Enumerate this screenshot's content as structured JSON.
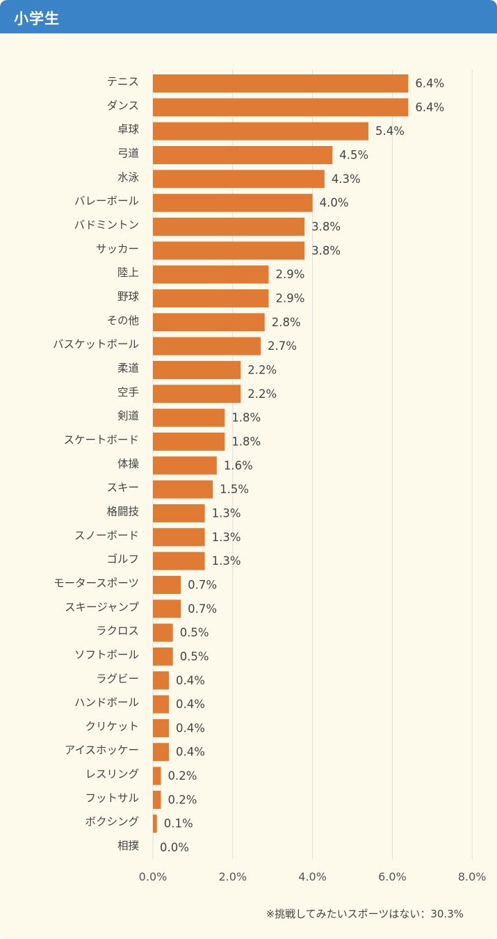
{
  "header": {
    "title": "小学生"
  },
  "footnote": "※挑戦してみたいスポーツはない：30.3%",
  "colors": {
    "bar": "#e07b35",
    "header": "#3a83c6",
    "background": "#fdfaec",
    "grid": "#dddddd"
  },
  "chart_data": {
    "type": "bar",
    "orientation": "horizontal",
    "categories": [
      "テニス",
      "ダンス",
      "卓球",
      "弓道",
      "水泳",
      "バレーボール",
      "バドミントン",
      "サッカー",
      "陸上",
      "野球",
      "その他",
      "バスケットボール",
      "柔道",
      "空手",
      "剣道",
      "スケートボード",
      "体操",
      "スキー",
      "格闘技",
      "スノーボード",
      "ゴルフ",
      "モータースポーツ",
      "スキージャンプ",
      "ラクロス",
      "ソフトボール",
      "ラグビー",
      "ハンドボール",
      "クリケット",
      "アイスホッケー",
      "レスリング",
      "フットサル",
      "ボクシング",
      "相撲"
    ],
    "values": [
      6.4,
      6.4,
      5.4,
      4.5,
      4.3,
      4.0,
      3.8,
      3.8,
      2.9,
      2.9,
      2.8,
      2.7,
      2.2,
      2.2,
      1.8,
      1.8,
      1.6,
      1.5,
      1.3,
      1.3,
      1.3,
      0.7,
      0.7,
      0.5,
      0.5,
      0.4,
      0.4,
      0.4,
      0.4,
      0.2,
      0.2,
      0.1,
      0.0
    ],
    "value_labels": [
      "6.4%",
      "6.4%",
      "5.4%",
      "4.5%",
      "4.3%",
      "4.0%",
      "3.8%",
      "3.8%",
      "2.9%",
      "2.9%",
      "2.8%",
      "2.7%",
      "2.2%",
      "2.2%",
      "1.8%",
      "1.8%",
      "1.6%",
      "1.5%",
      "1.3%",
      "1.3%",
      "1.3%",
      "0.7%",
      "0.7%",
      "0.5%",
      "0.5%",
      "0.4%",
      "0.4%",
      "0.4%",
      "0.4%",
      "0.2%",
      "0.2%",
      "0.1%",
      "0.0%"
    ],
    "xlim": [
      0,
      8
    ],
    "ticks": [
      0,
      2,
      4,
      6,
      8
    ],
    "tick_labels": [
      "0.0%",
      "2.0%",
      "4.0%",
      "6.0%",
      "8.0%"
    ],
    "grid": true
  }
}
